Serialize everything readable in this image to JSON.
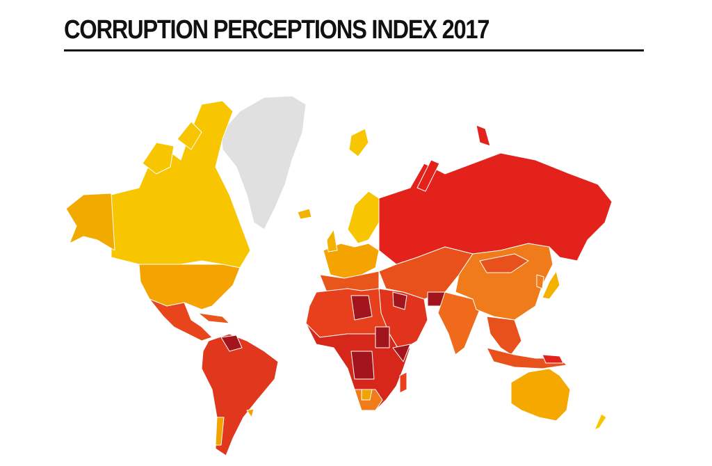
{
  "header": {
    "title": "CORRUPTION PERCEPTIONS INDEX 2017"
  }
}
